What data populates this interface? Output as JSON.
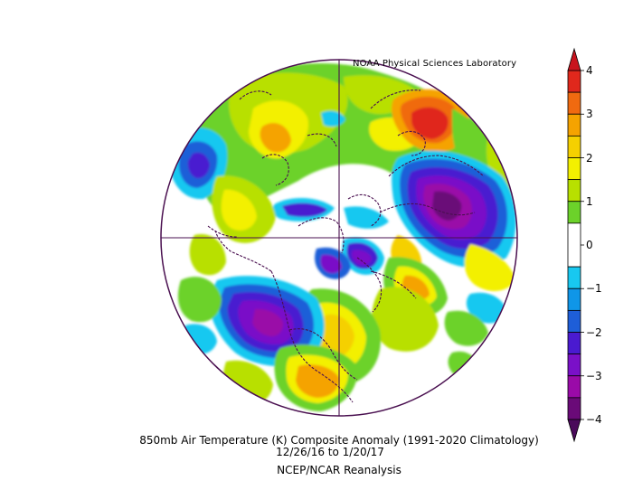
{
  "header": {
    "credit": "NOAA Physical Sciences Laboratory"
  },
  "caption": {
    "line1": "850mb Air Temperature (K) Composite Anomaly (1991-2020 Climatology)",
    "line2": "12/26/16   to 1/20/17",
    "line3": "NCEP/NCAR Reanalysis"
  },
  "colorbar": {
    "ticks": [
      {
        "value": 4,
        "label": "4"
      },
      {
        "value": 3,
        "label": "3"
      },
      {
        "value": 2,
        "label": "2"
      },
      {
        "value": 1,
        "label": "1"
      },
      {
        "value": 0,
        "label": "0"
      },
      {
        "value": -1,
        "label": "−1"
      },
      {
        "value": -2,
        "label": "−2"
      },
      {
        "value": -3,
        "label": "−3"
      },
      {
        "value": -4,
        "label": "−4"
      }
    ],
    "bins": [
      {
        "range": [
          3.5,
          4
        ],
        "color": "#e0281c"
      },
      {
        "range": [
          3,
          3.5
        ],
        "color": "#f06a10"
      },
      {
        "range": [
          2.5,
          3
        ],
        "color": "#f5a300"
      },
      {
        "range": [
          2,
          2.5
        ],
        "color": "#f5d000"
      },
      {
        "range": [
          1.5,
          2
        ],
        "color": "#f3f000"
      },
      {
        "range": [
          1,
          1.5
        ],
        "color": "#b8e000"
      },
      {
        "range": [
          0.5,
          1
        ],
        "color": "#6cd22a"
      },
      {
        "range": [
          -0.5,
          0.5
        ],
        "color": "#ffffff"
      },
      {
        "range": [
          -1,
          -0.5
        ],
        "color": "#18c8f0"
      },
      {
        "range": [
          -1.5,
          -1
        ],
        "color": "#0f96e8"
      },
      {
        "range": [
          -2,
          -1.5
        ],
        "color": "#1e5ed8"
      },
      {
        "range": [
          -2.5,
          -2
        ],
        "color": "#4a1ad0"
      },
      {
        "range": [
          -3,
          -2.5
        ],
        "color": "#7a10c8"
      },
      {
        "range": [
          -3.5,
          -3
        ],
        "color": "#9a0aa8"
      },
      {
        "range": [
          -4,
          -3.5
        ],
        "color": "#6a0a78"
      }
    ],
    "arrow_top_color": "#c8141e",
    "arrow_bottom_color": "#4a0a5a"
  },
  "map": {
    "projection": "north polar stereographic",
    "outline_color": "#4a1050"
  }
}
